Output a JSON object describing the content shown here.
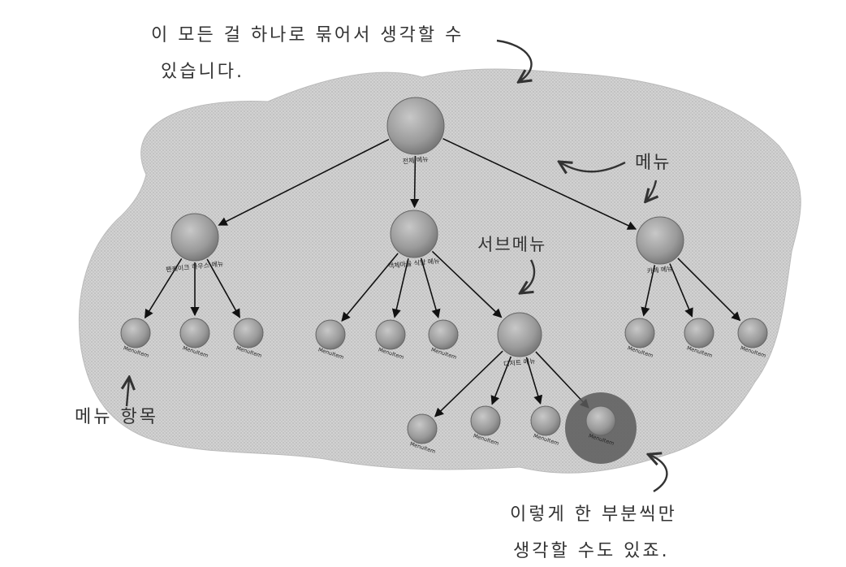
{
  "annotations": {
    "top_line1": "이 모든 걸 하나로 묶어서 생각할 수",
    "top_line2": "있습니다.",
    "menu": "메뉴",
    "submenu": "서브메뉴",
    "menu_item": "메뉴 항목",
    "bottom_line1": "이렇게 한 부분씩만",
    "bottom_line2": "생각할 수도 있죠."
  },
  "tree": {
    "root": "전체 메뉴",
    "menus": [
      "팬케이크 하우스 메뉴",
      "객체마을 식당 메뉴",
      "카페 메뉴"
    ],
    "submenu": "디저트 메뉴",
    "item_label": "MenuItem"
  },
  "colors": {
    "blob": "#cfcfcf",
    "node": "#9a9a9a",
    "highlight": "#5e5e5e",
    "ink": "#222222"
  }
}
